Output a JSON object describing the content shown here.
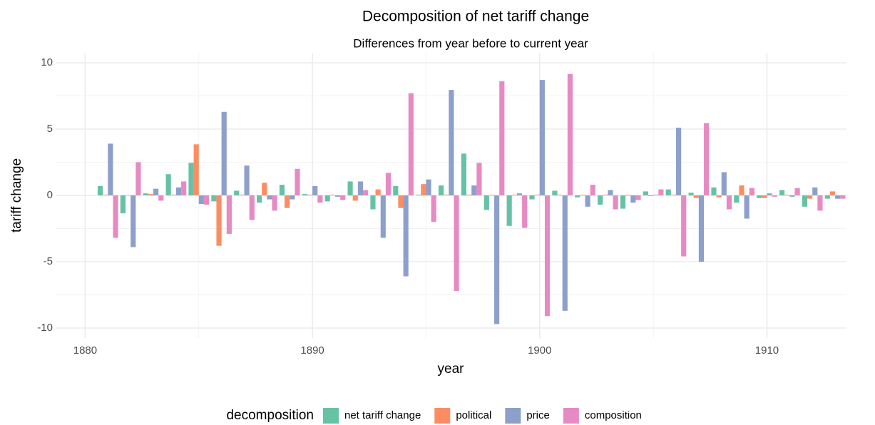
{
  "chart_data": {
    "type": "bar",
    "title": "Decomposition of net tariff change",
    "subtitle": "Differences from year before to current year",
    "x_label": "year",
    "y_label": "tariff change",
    "x": [
      1881,
      1882,
      1883,
      1884,
      1885,
      1886,
      1887,
      1888,
      1889,
      1890,
      1891,
      1892,
      1893,
      1894,
      1895,
      1896,
      1897,
      1898,
      1899,
      1900,
      1901,
      1902,
      1903,
      1904,
      1905,
      1906,
      1907,
      1908,
      1909,
      1910,
      1911,
      1912,
      1913
    ],
    "series": [
      {
        "name": "net tariff change",
        "color": "#66c2a5",
        "values": [
          0.7,
          -1.35,
          0.15,
          1.6,
          2.45,
          -0.45,
          0.35,
          -0.55,
          0.8,
          0.1,
          -0.45,
          1.05,
          -1.05,
          0.7,
          0.05,
          0.75,
          3.15,
          -1.1,
          -2.3,
          -0.3,
          0.35,
          -0.15,
          -0.7,
          -1.0,
          0.3,
          0.45,
          0.2,
          0.6,
          -0.55,
          -0.2,
          0.4,
          -0.85,
          -0.25
        ]
      },
      {
        "name": "political",
        "color": "#fc8d62",
        "values": [
          0.05,
          0,
          0.1,
          0.05,
          3.85,
          -3.8,
          0.05,
          0.95,
          -0.95,
          0.05,
          0.05,
          -0.4,
          0.45,
          -0.95,
          0.85,
          0.05,
          0.05,
          0.05,
          0.05,
          0.05,
          0.05,
          0.05,
          0.05,
          0.05,
          -0.05,
          0.05,
          -0.2,
          -0.15,
          0.75,
          -0.2,
          0.05,
          -0.25,
          0.3
        ]
      },
      {
        "name": "price",
        "color": "#8da0cb",
        "values": [
          3.9,
          -3.9,
          0.5,
          0.6,
          -0.65,
          6.3,
          2.25,
          -0.3,
          -0.3,
          0.7,
          -0.1,
          1.05,
          -3.2,
          -6.1,
          1.2,
          7.95,
          0.75,
          -9.7,
          0.15,
          8.7,
          -8.7,
          -0.85,
          0.4,
          -0.55,
          0.05,
          5.1,
          -5.0,
          1.75,
          -1.75,
          0.15,
          -0.1,
          0.6,
          -0.25
        ]
      },
      {
        "name": "composition",
        "color": "#e78ac3",
        "values": [
          -3.2,
          2.5,
          -0.4,
          1.05,
          -0.7,
          -2.9,
          -1.85,
          -1.15,
          2.0,
          -0.55,
          -0.35,
          0.4,
          1.7,
          7.7,
          -2.0,
          -7.2,
          2.45,
          8.6,
          -2.45,
          -9.1,
          9.15,
          0.8,
          -1.05,
          -0.35,
          0.45,
          -4.6,
          5.45,
          -1.05,
          0.55,
          -0.1,
          0.55,
          -1.15,
          -0.25
        ]
      }
    ],
    "legend_title": "decomposition",
    "legend_position": "bottom",
    "xlim": [
      1878.7,
      1913.5
    ],
    "xticks": [
      1880,
      1890,
      1900,
      1910
    ],
    "ylim": [
      -10.75,
      10.75
    ],
    "yticks": [
      -10,
      -5,
      0,
      5,
      10
    ],
    "grid": true
  }
}
